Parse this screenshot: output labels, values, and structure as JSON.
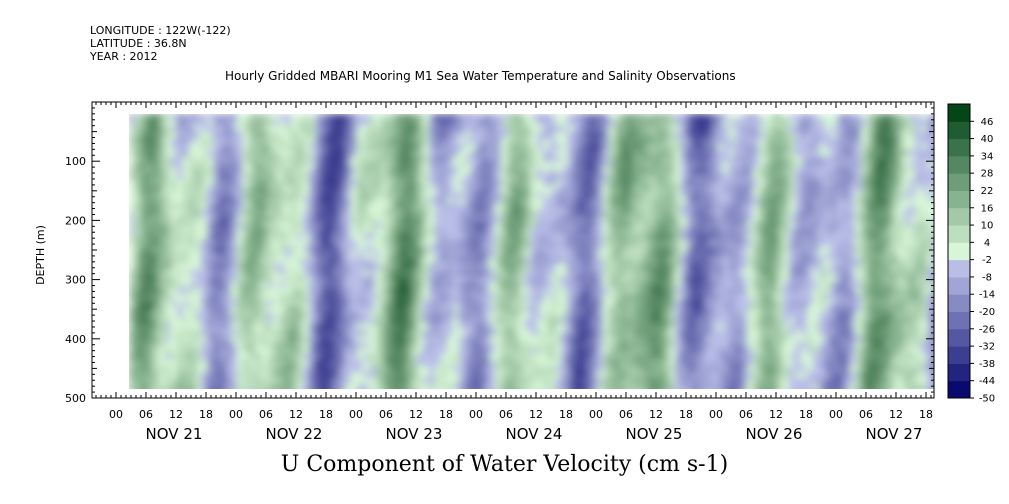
{
  "header": {
    "longitude": "LONGITUDE : 122W(-122)",
    "latitude": "LATITUDE : 36.8N",
    "year": "YEAR : 2012"
  },
  "chart_data": {
    "type": "heatmap",
    "title": "Hourly Gridded MBARI Mooring M1 Sea Water Temperature and Salinity Observations",
    "xlabel": "U Component of Water Velocity (cm s-1)",
    "ylabel": "DEPTH (m)",
    "y_axis": {
      "range": [
        500,
        0
      ],
      "major_ticks": [
        100,
        200,
        300,
        400,
        500
      ],
      "tick_labels": [
        "100",
        "200",
        "300",
        "400",
        "500"
      ],
      "data_range": [
        20,
        490
      ]
    },
    "x_axis": {
      "hour_labels": [
        "00",
        "06",
        "12",
        "18",
        "00",
        "06",
        "12",
        "18",
        "00",
        "06",
        "12",
        "18",
        "00",
        "06",
        "12",
        "18",
        "00",
        "06",
        "12",
        "18",
        "00",
        "06",
        "12",
        "18",
        "00",
        "06",
        "12",
        "18"
      ],
      "day_labels": [
        "NOV 21",
        "NOV 22",
        "NOV 23",
        "NOV 24",
        "NOV 25",
        "NOV 26",
        "NOV 27"
      ]
    },
    "colorbar": {
      "min": -50,
      "max": 52,
      "step": 6,
      "labels": [
        "46",
        "40",
        "34",
        "28",
        "22",
        "16",
        "10",
        "4",
        "-2",
        "-8",
        "-14",
        "-20",
        "-26",
        "-32",
        "-38",
        "-44",
        "-50"
      ],
      "colors": {
        "strong_negative": "#1a237e",
        "negative": "#6f7fe8",
        "weak_negative": "#aab4f2",
        "neutral": "#e6f5e6",
        "weak_positive": "#8fe88f",
        "positive": "#2ecc55",
        "strong_positive": "#0a5c1e"
      }
    },
    "summary": {
      "value_range": [
        -35,
        45
      ],
      "pattern": "alternating vertical bands of positive (green) and negative (blue) velocity, strongest negative near surface"
    }
  }
}
